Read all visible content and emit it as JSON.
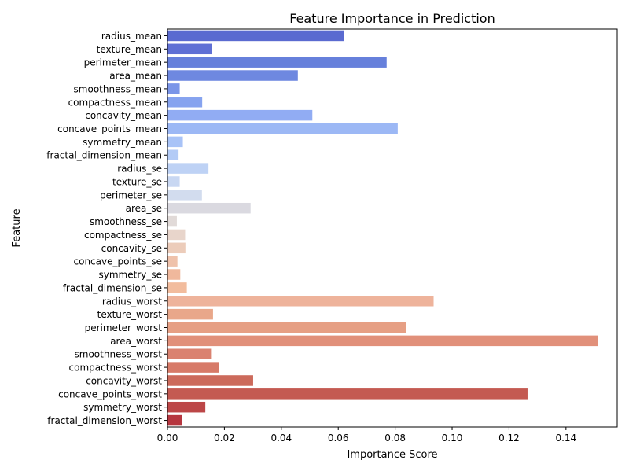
{
  "chart_data": {
    "type": "bar",
    "orientation": "horizontal",
    "title": "Feature Importance in Prediction",
    "xlabel": "Importance Score",
    "ylabel": "Feature",
    "xlim": [
      0,
      0.158
    ],
    "xticks": [
      0.0,
      0.02,
      0.04,
      0.06,
      0.08,
      0.1,
      0.12,
      0.14
    ],
    "xtick_labels": [
      "0.00",
      "0.02",
      "0.04",
      "0.06",
      "0.08",
      "0.10",
      "0.12",
      "0.14"
    ],
    "grid": false,
    "legend": "none",
    "palette": "coolwarm",
    "categories": [
      "radius_mean",
      "texture_mean",
      "perimeter_mean",
      "area_mean",
      "smoothness_mean",
      "compactness_mean",
      "concavity_mean",
      "concave_points_mean",
      "symmetry_mean",
      "fractal_dimension_mean",
      "radius_se",
      "texture_se",
      "perimeter_se",
      "area_se",
      "smoothness_se",
      "compactness_se",
      "concavity_se",
      "concave_points_se",
      "symmetry_se",
      "fractal_dimension_se",
      "radius_worst",
      "texture_worst",
      "perimeter_worst",
      "area_worst",
      "smoothness_worst",
      "compactness_worst",
      "concavity_worst",
      "concave_points_worst",
      "symmetry_worst",
      "fractal_dimension_worst"
    ],
    "values": [
      0.062,
      0.0155,
      0.077,
      0.0458,
      0.0043,
      0.0122,
      0.0509,
      0.0809,
      0.0054,
      0.0039,
      0.0144,
      0.0043,
      0.0121,
      0.0292,
      0.0033,
      0.0062,
      0.0063,
      0.0035,
      0.0045,
      0.0068,
      0.0935,
      0.016,
      0.0837,
      0.1512,
      0.0153,
      0.0182,
      0.0301,
      0.1265,
      0.0133,
      0.0051
    ],
    "colors": [
      "#5a6ad0",
      "#5f70d5",
      "#6680db",
      "#6e88e0",
      "#7a95e8",
      "#86a3ef",
      "#91acf3",
      "#9cb8f5",
      "#a8c3f7",
      "#b3cbf6",
      "#bed2f5",
      "#c8d7f2",
      "#d2dcee",
      "#dad9e0",
      "#e1dad8",
      "#e8d5cb",
      "#ecccba",
      "#efc2ab",
      "#f0b89c",
      "#f2bc9d",
      "#eeb39b",
      "#e9a78a",
      "#e69f84",
      "#e1907a",
      "#da8270",
      "#d77a68",
      "#cc6a5b",
      "#c45a52",
      "#bc4647",
      "#b6363f"
    ]
  }
}
